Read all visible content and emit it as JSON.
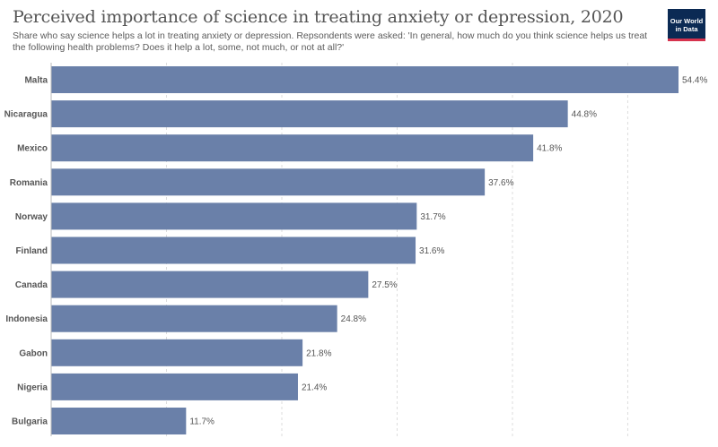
{
  "header": {
    "title": "Perceived importance of science in treating anxiety or depression, 2020",
    "subtitle": "Share who say science helps a lot in treating anxiety or depression. Repsondents were asked: 'In general, how much do you think science helps us treat the following health problems? Does it help a lot, some, not much, or not at all?'",
    "logo_line1": "Our World",
    "logo_line2": "in Data"
  },
  "colors": {
    "bar": "#6a80a9",
    "grid": "#dddddd",
    "axis": "#bbbbbb",
    "logo_bg": "#0b2a54",
    "logo_accent": "#d6324d"
  },
  "chart_data": {
    "type": "bar",
    "orientation": "horizontal",
    "title": "Perceived importance of science in treating anxiety or depression, 2020",
    "xlabel": "",
    "ylabel": "",
    "categories": [
      "Malta",
      "Nicaragua",
      "Mexico",
      "Romania",
      "Norway",
      "Finland",
      "Canada",
      "Indonesia",
      "Gabon",
      "Nigeria",
      "Bulgaria"
    ],
    "values": [
      54.4,
      44.8,
      41.8,
      37.6,
      31.7,
      31.6,
      27.5,
      24.8,
      21.8,
      21.4,
      11.7
    ],
    "value_labels": [
      "54.4%",
      "44.8%",
      "41.8%",
      "37.6%",
      "31.7%",
      "31.6%",
      "27.5%",
      "24.8%",
      "21.8%",
      "21.4%",
      "11.7%"
    ],
    "xlim": [
      0,
      54.4
    ],
    "gridlines": [
      10,
      20,
      30,
      40,
      50
    ],
    "grid": true,
    "legend": false
  }
}
